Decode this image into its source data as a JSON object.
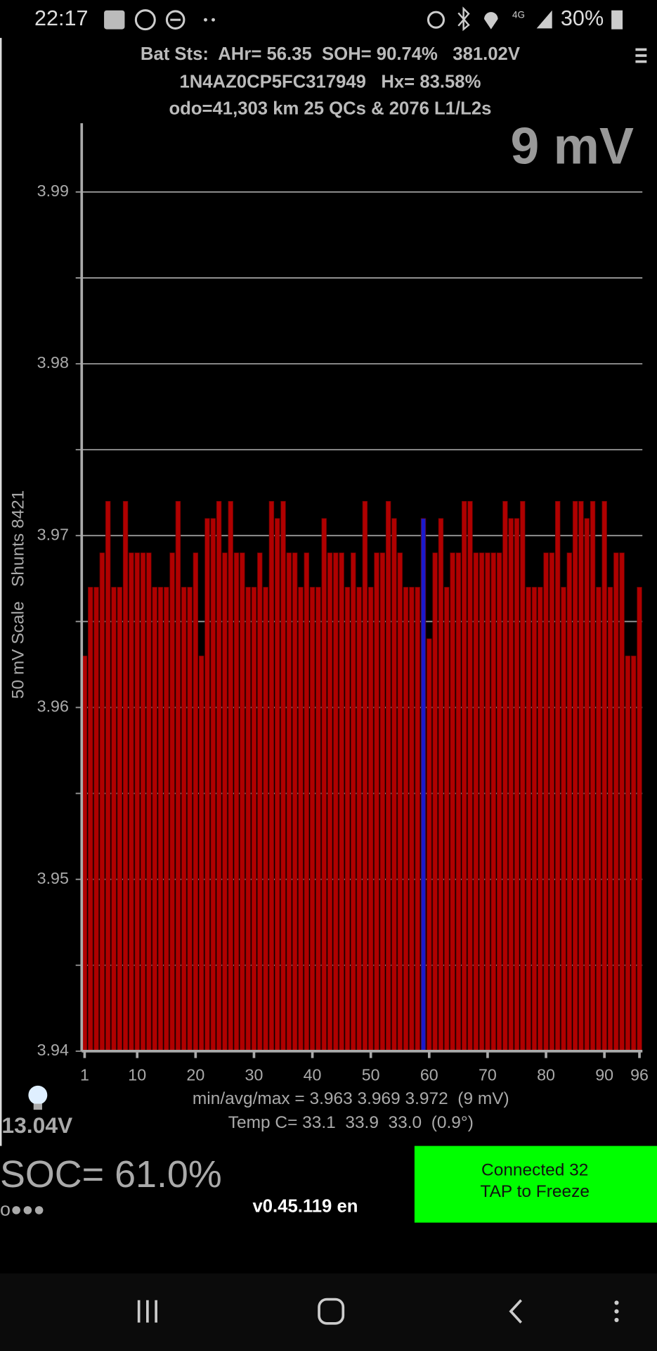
{
  "status_bar": {
    "time": "22:17",
    "battery": "30%"
  },
  "header": {
    "line1": "Bat Sts:  AHr= 56.35  SOH= 90.74%   381.02V",
    "line2": "1N4AZ0CP5FC317949   Hx= 83.58%",
    "line3": "odo=41,303 km 25 QCs & 2076 L1/L2s"
  },
  "chart_data": {
    "type": "bar",
    "annotation": "9 mV",
    "y_label": "50 mV Scale   Shunts 8421",
    "x": [
      1,
      2,
      3,
      4,
      5,
      6,
      7,
      8,
      9,
      10,
      11,
      12,
      13,
      14,
      15,
      16,
      17,
      18,
      19,
      20,
      21,
      22,
      23,
      24,
      25,
      26,
      27,
      28,
      29,
      30,
      31,
      32,
      33,
      34,
      35,
      36,
      37,
      38,
      39,
      40,
      41,
      42,
      43,
      44,
      45,
      46,
      47,
      48,
      49,
      50,
      51,
      52,
      53,
      54,
      55,
      56,
      57,
      58,
      59,
      60,
      61,
      62,
      63,
      64,
      65,
      66,
      67,
      68,
      69,
      70,
      71,
      72,
      73,
      74,
      75,
      76,
      77,
      78,
      79,
      80,
      81,
      82,
      83,
      84,
      85,
      86,
      87,
      88,
      89,
      90,
      91,
      92,
      93,
      94,
      95,
      96
    ],
    "values": [
      3.963,
      3.967,
      3.967,
      3.969,
      3.972,
      3.967,
      3.967,
      3.972,
      3.969,
      3.969,
      3.969,
      3.969,
      3.967,
      3.967,
      3.967,
      3.969,
      3.972,
      3.967,
      3.967,
      3.969,
      3.963,
      3.971,
      3.971,
      3.972,
      3.969,
      3.972,
      3.969,
      3.969,
      3.967,
      3.967,
      3.969,
      3.967,
      3.972,
      3.971,
      3.972,
      3.969,
      3.969,
      3.967,
      3.969,
      3.967,
      3.967,
      3.971,
      3.969,
      3.969,
      3.969,
      3.967,
      3.969,
      3.967,
      3.972,
      3.967,
      3.969,
      3.969,
      3.972,
      3.971,
      3.969,
      3.967,
      3.967,
      3.967,
      3.971,
      3.964,
      3.969,
      3.971,
      3.967,
      3.969,
      3.969,
      3.972,
      3.972,
      3.969,
      3.969,
      3.969,
      3.969,
      3.969,
      3.972,
      3.971,
      3.971,
      3.972,
      3.967,
      3.967,
      3.967,
      3.969,
      3.969,
      3.972,
      3.967,
      3.969,
      3.972,
      3.972,
      3.971,
      3.972,
      3.967,
      3.972,
      3.967,
      3.969,
      3.969,
      3.963,
      3.963,
      3.967
    ],
    "colors": [
      "#b00000",
      "#b00000",
      "#b00000",
      "#b00000",
      "#b00000",
      "#b00000",
      "#b00000",
      "#b00000",
      "#b00000",
      "#b00000",
      "#b00000",
      "#b00000",
      "#b00000",
      "#b00000",
      "#b00000",
      "#b00000",
      "#b00000",
      "#b00000",
      "#b00000",
      "#b00000",
      "#b00000",
      "#b00000",
      "#b00000",
      "#b00000",
      "#b00000",
      "#b00000",
      "#b00000",
      "#b00000",
      "#b00000",
      "#b00000",
      "#b00000",
      "#b00000",
      "#b00000",
      "#b00000",
      "#b00000",
      "#b00000",
      "#b00000",
      "#b00000",
      "#b00000",
      "#b00000",
      "#b00000",
      "#b00000",
      "#b00000",
      "#b00000",
      "#b00000",
      "#b00000",
      "#b00000",
      "#b00000",
      "#b00000",
      "#b00000",
      "#b00000",
      "#b00000",
      "#b00000",
      "#b00000",
      "#b00000",
      "#b00000",
      "#b00000",
      "#b00000",
      "#1a1acc",
      "#b00000",
      "#b00000",
      "#b00000",
      "#b00000",
      "#b00000",
      "#b00000",
      "#b00000",
      "#b00000",
      "#b00000",
      "#b00000",
      "#b00000",
      "#b00000",
      "#b00000",
      "#b00000",
      "#b00000",
      "#b00000",
      "#b00000",
      "#b00000",
      "#b00000",
      "#b00000",
      "#b00000",
      "#b00000",
      "#b00000",
      "#b00000",
      "#b00000",
      "#b00000",
      "#b00000",
      "#b00000",
      "#b00000",
      "#b00000",
      "#b00000",
      "#b00000",
      "#b00000",
      "#b00000",
      "#b00000",
      "#b00000",
      "#b00000"
    ],
    "xlim": [
      0.5,
      96.5
    ],
    "xticks": [
      1,
      10,
      20,
      30,
      40,
      50,
      60,
      70,
      80,
      90,
      96
    ],
    "ylim": [
      3.94,
      3.994
    ],
    "yticks": [
      3.94,
      3.95,
      3.96,
      3.97,
      3.98,
      3.99
    ],
    "minor_yticks": [
      3.945,
      3.955,
      3.965,
      3.975,
      3.985
    ],
    "grid": true
  },
  "stats": {
    "min_avg_max": "min/avg/max = 3.963 3.969 3.972  (9 mV)",
    "temp": "Temp C= 33.1  33.9  33.0  (0.9°)"
  },
  "aux_voltage": "13.04V",
  "soc": "SOC= 61.0%",
  "dots": "o●●●",
  "version": "v0.45.119 en",
  "button": {
    "line1": "Connected 32",
    "line2": "TAP to Freeze"
  }
}
